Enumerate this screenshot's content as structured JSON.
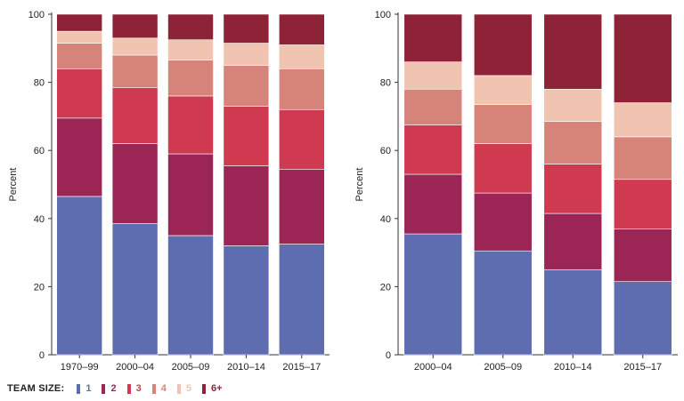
{
  "chart_data": [
    {
      "type": "bar",
      "stacked": true,
      "ylabel": "Percent",
      "ylim": [
        0,
        100
      ],
      "yticks": [
        0,
        20,
        40,
        60,
        80,
        100
      ],
      "categories": [
        "1970–99",
        "2000–04",
        "2005–09",
        "2010–14",
        "2015–17"
      ],
      "series": [
        {
          "name": "1",
          "values": [
            46.5,
            38.5,
            35.0,
            32.0,
            32.5
          ]
        },
        {
          "name": "2",
          "values": [
            23.0,
            23.5,
            24.0,
            23.5,
            22.0
          ]
        },
        {
          "name": "3",
          "values": [
            14.5,
            16.5,
            17.0,
            17.5,
            17.5
          ]
        },
        {
          "name": "4",
          "values": [
            7.5,
            9.5,
            10.5,
            12.0,
            12.0
          ]
        },
        {
          "name": "5",
          "values": [
            3.5,
            5.0,
            6.0,
            6.5,
            7.0
          ]
        },
        {
          "name": "6+",
          "values": [
            5.0,
            7.0,
            7.5,
            8.5,
            9.0
          ]
        }
      ]
    },
    {
      "type": "bar",
      "stacked": true,
      "ylabel": "Percent",
      "ylim": [
        0,
        100
      ],
      "yticks": [
        0,
        20,
        40,
        60,
        80,
        100
      ],
      "categories": [
        "2000–04",
        "2005–09",
        "2010–14",
        "2015–17"
      ],
      "series": [
        {
          "name": "1",
          "values": [
            35.5,
            30.5,
            25.0,
            21.5
          ]
        },
        {
          "name": "2",
          "values": [
            17.5,
            17.0,
            16.5,
            15.5
          ]
        },
        {
          "name": "3",
          "values": [
            14.5,
            14.5,
            14.5,
            14.5
          ]
        },
        {
          "name": "4",
          "values": [
            10.5,
            11.5,
            12.5,
            12.5
          ]
        },
        {
          "name": "5",
          "values": [
            8.0,
            8.5,
            9.5,
            10.0
          ]
        },
        {
          "name": "6+",
          "values": [
            14.0,
            18.0,
            22.0,
            26.0
          ]
        }
      ]
    }
  ],
  "legend": {
    "title": "TEAM SIZE:",
    "items": [
      {
        "label": "1",
        "color": "#5e6db0"
      },
      {
        "label": "2",
        "color": "#9b2656"
      },
      {
        "label": "3",
        "color": "#cf3a51"
      },
      {
        "label": "4",
        "color": "#d6837a"
      },
      {
        "label": "5",
        "color": "#f1c4b2"
      },
      {
        "label": "6+",
        "color": "#8e2236"
      }
    ]
  }
}
